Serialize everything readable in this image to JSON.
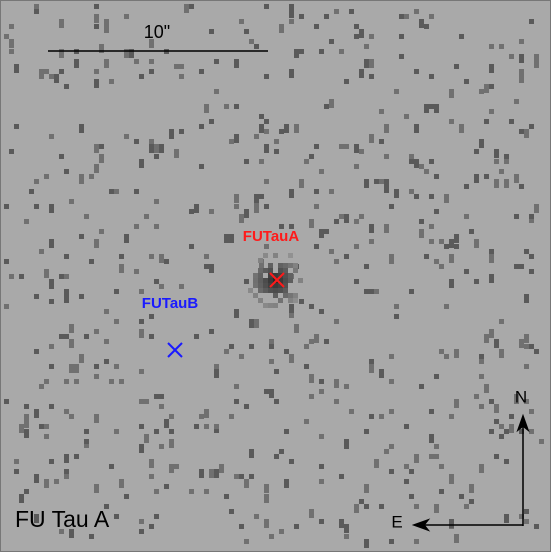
{
  "scale_bar": {
    "label": "10\""
  },
  "sources": [
    {
      "label": "FUTauA"
    },
    {
      "label": "FUTauB"
    }
  ],
  "compass": {
    "north": "N",
    "east": "E"
  },
  "title": "FU Tau A"
}
